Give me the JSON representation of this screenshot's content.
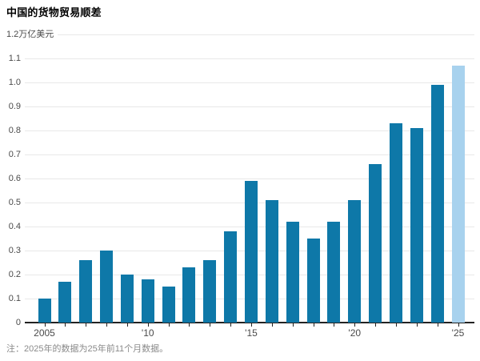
{
  "header": {
    "title": "中国的货物贸易顺差"
  },
  "footer": {
    "note": "注：2025年的数据为25年前11个月数据。"
  },
  "colors": {
    "background": "#ffffff",
    "title": "#000000",
    "bar": "#0e78a8",
    "bar_highlight": "#a8d2ee",
    "gridline": "#e8e8e8",
    "axis": "#222222",
    "tick_label": "#4a4a4a",
    "note": "#8a8a8a"
  },
  "chart_data": {
    "type": "bar",
    "title": "中国的货物贸易顺差",
    "unit_label": "万亿美元",
    "categories": [
      2005,
      2006,
      2007,
      2008,
      2009,
      2010,
      2011,
      2012,
      2013,
      2014,
      2015,
      2016,
      2017,
      2018,
      2019,
      2020,
      2021,
      2022,
      2023,
      2024,
      2025
    ],
    "values": [
      0.1,
      0.17,
      0.26,
      0.3,
      0.2,
      0.18,
      0.15,
      0.23,
      0.26,
      0.38,
      0.59,
      0.51,
      0.42,
      0.35,
      0.42,
      0.51,
      0.66,
      0.83,
      0.81,
      0.99,
      1.07
    ],
    "highlight_index": 20,
    "highlight_meaning": "2025年的数据为25年前11个月数据",
    "ylim": [
      0,
      1.2
    ],
    "yticks": [
      0,
      0.1,
      0.2,
      0.3,
      0.4,
      0.5,
      0.6,
      0.7,
      0.8,
      0.9,
      1.0,
      1.1,
      1.2
    ],
    "ytick_labels": [
      "0",
      "0.1",
      "0.2",
      "0.3",
      "0.4",
      "0.5",
      "0.6",
      "0.7",
      "0.8",
      "0.9",
      "1.0",
      "1.1",
      "1.2万亿美元"
    ],
    "xticks": [
      {
        "index": 0,
        "label": "2005"
      },
      {
        "index": 5,
        "label": "'10"
      },
      {
        "index": 10,
        "label": "'15"
      },
      {
        "index": 15,
        "label": "'20"
      },
      {
        "index": 20,
        "label": "'25"
      }
    ],
    "grid": true,
    "legend_position": "none"
  }
}
